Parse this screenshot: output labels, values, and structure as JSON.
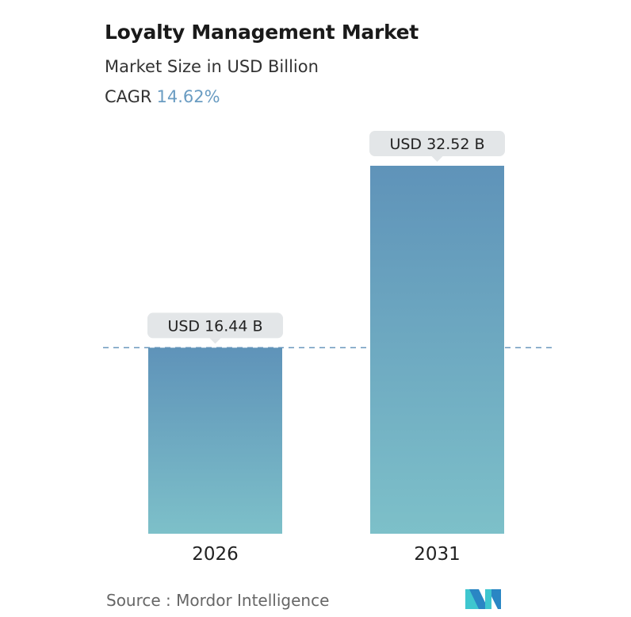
{
  "header": {
    "title": "Loyalty Management Market",
    "subtitle": "Market Size in USD Billion",
    "cagr_label": "CAGR",
    "cagr_value": "14.62%"
  },
  "chart_data": {
    "type": "bar",
    "categories": [
      "2026",
      "2031"
    ],
    "values": [
      16.44,
      32.52
    ],
    "data_labels": [
      "USD 16.44 B",
      "USD 32.52 B"
    ],
    "title": "Loyalty Management Market",
    "ylabel": "",
    "xlabel": "",
    "grid": false,
    "reference_line": "dashed at 2026 value",
    "colors": {
      "bar_top": "#5f93b9",
      "bar_bottom": "#7dc0c9",
      "label_bg": "#e3e6e8",
      "dash": "#6a98bd",
      "cagr": "#6a9cc2"
    }
  },
  "footer": {
    "source": "Source :  Mordor Intelligence",
    "logo_text": "Mordor Intelligence"
  }
}
